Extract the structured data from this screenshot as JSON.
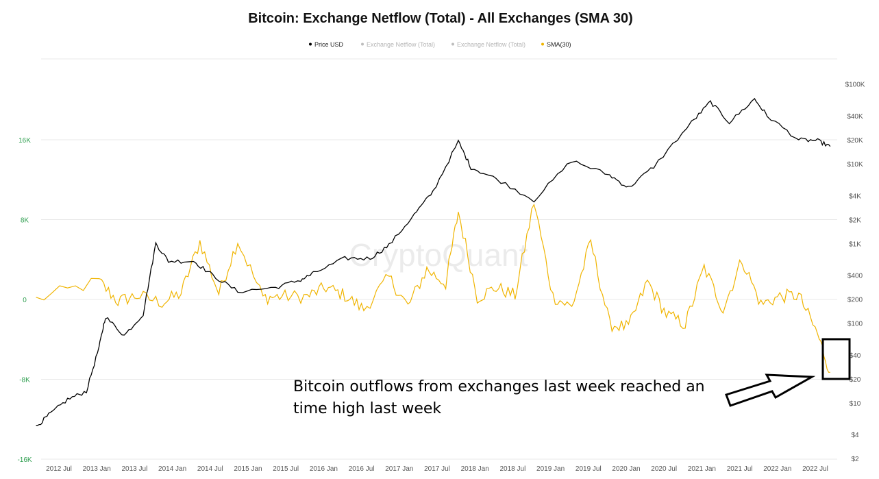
{
  "chart_data": {
    "type": "line",
    "title": "Bitcoin: Exchange Netflow (Total) - All Exchanges (SMA 30)",
    "watermark": "CryptoQuant",
    "legend": [
      {
        "label": "Price USD",
        "color": "#000000",
        "active": true
      },
      {
        "label": "Exchange Netflow (Total)",
        "color": "#bdbdbd",
        "active": false
      },
      {
        "label": "Exchange Netflow (Total)",
        "color": "#bdbdbd",
        "active": false
      },
      {
        "label": "SMA(30)",
        "color": "#f0b400",
        "active": true
      }
    ],
    "legend_placement": "top-center",
    "grid": true,
    "x_ticks": [
      "2012 Jul",
      "2013 Jan",
      "2013 Jul",
      "2014 Jan",
      "2014 Jul",
      "2015 Jan",
      "2015 Jul",
      "2016 Jan",
      "2016 Jul",
      "2017 Jan",
      "2017 Jul",
      "2018 Jan",
      "2018 Jul",
      "2019 Jan",
      "2019 Jul",
      "2020 Jan",
      "2020 Jul",
      "2021 Jan",
      "2021 Jul",
      "2022 Jan",
      "2022 Jul"
    ],
    "y_left": {
      "ticks": [
        "16K",
        "8K",
        "0",
        "-8K",
        "-16K"
      ],
      "range": [
        -16000,
        16000
      ],
      "color": "#2e9e4f"
    },
    "y_right": {
      "scale": "log",
      "ticks": [
        "$100K",
        "$40K",
        "$20K",
        "$10K",
        "$4K",
        "$2K",
        "$1K",
        "$400",
        "$200",
        "$100",
        "$40",
        "$20",
        "$10",
        "$4",
        "$2"
      ]
    },
    "series": [
      {
        "name": "Price USD",
        "axis": "right",
        "color": "#000000",
        "x": [
          "2012-05",
          "2012-07",
          "2012-10",
          "2013-01",
          "2013-03",
          "2013-04",
          "2013-07",
          "2013-10",
          "2013-12",
          "2014-02",
          "2014-06",
          "2014-09",
          "2015-01",
          "2015-07",
          "2015-11",
          "2016-01",
          "2016-06",
          "2016-10",
          "2017-01",
          "2017-05",
          "2017-08",
          "2017-12",
          "2018-02",
          "2018-06",
          "2018-12",
          "2019-06",
          "2019-12",
          "2020-03",
          "2020-07",
          "2021-01",
          "2021-04",
          "2021-07",
          "2021-11",
          "2022-01",
          "2022-06",
          "2022-09",
          "2022-11"
        ],
        "values": [
          5,
          7,
          11,
          14,
          50,
          120,
          70,
          130,
          1000,
          600,
          600,
          400,
          250,
          280,
          350,
          420,
          650,
          650,
          950,
          2300,
          4500,
          19000,
          9000,
          6500,
          3500,
          11000,
          7200,
          5000,
          9200,
          33000,
          60000,
          33000,
          65000,
          40000,
          20000,
          19500,
          16500
        ]
      },
      {
        "name": "SMA(30)",
        "axis": "left",
        "color": "#f0b400",
        "x": [
          "2012-05",
          "2013-03",
          "2013-06",
          "2013-09",
          "2014-01",
          "2014-04",
          "2014-07",
          "2014-10",
          "2015-01",
          "2015-05",
          "2015-08",
          "2015-12",
          "2016-03",
          "2016-06",
          "2016-09",
          "2017-01",
          "2017-04",
          "2017-07",
          "2017-10",
          "2017-12",
          "2018-03",
          "2018-06",
          "2018-09",
          "2018-12",
          "2019-03",
          "2019-06",
          "2019-09",
          "2019-12",
          "2020-03",
          "2020-06",
          "2020-09",
          "2020-12",
          "2021-03",
          "2021-06",
          "2021-09",
          "2021-12",
          "2022-03",
          "2022-06",
          "2022-09",
          "2022-11"
        ],
        "values": [
          0,
          1800,
          -200,
          400,
          -300,
          600,
          5800,
          600,
          5900,
          200,
          300,
          300,
          1200,
          400,
          -1000,
          2200,
          -700,
          3000,
          1600,
          8800,
          200,
          1200,
          400,
          9800,
          300,
          -800,
          5800,
          -2500,
          -2800,
          1800,
          -1500,
          -2500,
          3200,
          -1000,
          4000,
          -500,
          300,
          400,
          -3500,
          -7300
        ]
      }
    ],
    "annotations": [
      "Bitcoin outflows from exchanges last week reached an",
      "time high last week"
    ]
  }
}
